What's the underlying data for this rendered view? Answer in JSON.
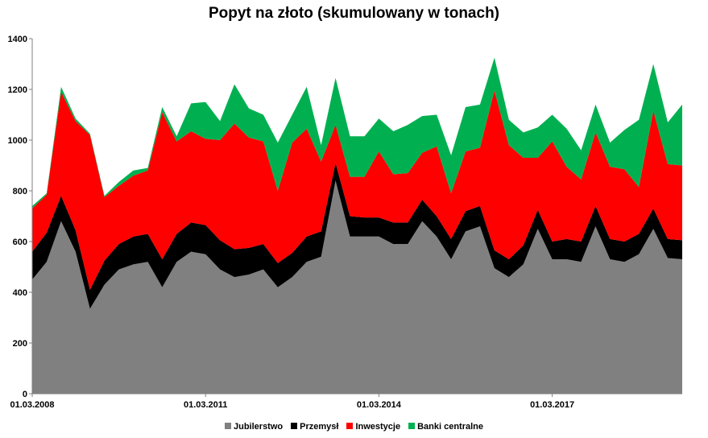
{
  "chart_data": {
    "type": "area",
    "stacked": true,
    "title": "Popyt na złoto (skumulowany w tonach)",
    "ylim": [
      0,
      1400
    ],
    "yticks": [
      0,
      200,
      400,
      600,
      800,
      1000,
      1200,
      1400
    ],
    "xtick_labels": [
      "01.03.2008",
      "01.03.2011",
      "01.03.2014",
      "01.03.2017"
    ],
    "xtick_index": [
      0,
      12,
      24,
      36
    ],
    "grid": false,
    "legend_position": "bottom",
    "x": [
      "2008Q1",
      "2008Q2",
      "2008Q3",
      "2008Q4",
      "2009Q1",
      "2009Q2",
      "2009Q3",
      "2009Q4",
      "2010Q1",
      "2010Q2",
      "2010Q3",
      "2010Q4",
      "2011Q1",
      "2011Q2",
      "2011Q3",
      "2011Q4",
      "2012Q1",
      "2012Q2",
      "2012Q3",
      "2012Q4",
      "2013Q1",
      "2013Q2",
      "2013Q3",
      "2013Q4",
      "2014Q1",
      "2014Q2",
      "2014Q3",
      "2014Q4",
      "2015Q1",
      "2015Q2",
      "2015Q3",
      "2015Q4",
      "2016Q1",
      "2016Q2",
      "2016Q3",
      "2016Q4",
      "2017Q1",
      "2017Q2",
      "2017Q3",
      "2017Q4",
      "2018Q1",
      "2018Q2",
      "2018Q3",
      "2018Q4",
      "2019Q1",
      "2019Q2"
    ],
    "series": [
      {
        "name": "Jubilerstwo",
        "color": "#808080",
        "values": [
          450,
          520,
          680,
          560,
          335,
          430,
          490,
          510,
          520,
          420,
          520,
          560,
          550,
          490,
          460,
          470,
          490,
          420,
          460,
          520,
          540,
          840,
          620,
          620,
          620,
          590,
          590,
          680,
          620,
          530,
          640,
          660,
          495,
          460,
          510,
          650,
          530,
          530,
          520,
          660,
          530,
          520,
          550,
          650,
          535,
          530
        ]
      },
      {
        "name": "Przemysł",
        "color": "#000000",
        "values": [
          110,
          115,
          100,
          85,
          75,
          95,
          100,
          110,
          110,
          110,
          110,
          115,
          115,
          115,
          110,
          105,
          100,
          95,
          95,
          100,
          100,
          70,
          80,
          75,
          75,
          85,
          85,
          85,
          80,
          80,
          80,
          80,
          70,
          70,
          75,
          75,
          70,
          80,
          80,
          80,
          80,
          80,
          80,
          80,
          75,
          75
        ]
      },
      {
        "name": "Inwestycje",
        "color": "#ff0000",
        "values": [
          170,
          150,
          410,
          430,
          610,
          250,
          230,
          240,
          250,
          580,
          365,
          360,
          340,
          395,
          495,
          435,
          405,
          285,
          435,
          425,
          275,
          150,
          155,
          160,
          260,
          190,
          195,
          185,
          275,
          180,
          235,
          230,
          630,
          450,
          345,
          205,
          395,
          285,
          245,
          290,
          285,
          285,
          185,
          385,
          295,
          295
        ]
      },
      {
        "name": "Banki centralne",
        "color": "#00b050",
        "values": [
          10,
          5,
          20,
          10,
          5,
          5,
          15,
          20,
          10,
          20,
          20,
          110,
          145,
          75,
          155,
          115,
          105,
          190,
          110,
          165,
          65,
          185,
          160,
          160,
          130,
          170,
          190,
          145,
          125,
          150,
          175,
          170,
          130,
          100,
          100,
          120,
          105,
          150,
          115,
          110,
          95,
          155,
          265,
          185,
          165,
          240
        ]
      }
    ]
  }
}
